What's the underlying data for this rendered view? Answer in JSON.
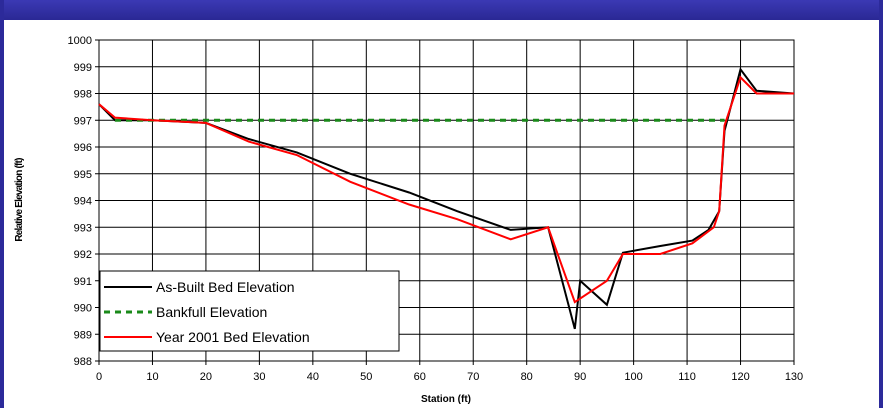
{
  "chart_data": {
    "type": "line",
    "title": "",
    "xlabel": "Station (ft)",
    "ylabel": "Relative Elevation (ft)",
    "xlim": [
      0,
      130
    ],
    "ylim": [
      988,
      1000
    ],
    "x_ticks": [
      0,
      10,
      20,
      30,
      40,
      50,
      60,
      70,
      80,
      90,
      100,
      110,
      120,
      130
    ],
    "y_ticks": [
      988,
      989,
      990,
      991,
      992,
      993,
      994,
      995,
      996,
      997,
      998,
      999,
      1000
    ],
    "grid": true,
    "legend_position": "bottom-left",
    "series": [
      {
        "name": "As-Built Bed Elevation",
        "color": "#000000",
        "style": "solid",
        "x": [
          0,
          3,
          10,
          20,
          28,
          37,
          47,
          58,
          67,
          77,
          84,
          89,
          90,
          95,
          98,
          105,
          111,
          114,
          116,
          117,
          120,
          123,
          130
        ],
        "y": [
          997.6,
          997.0,
          997.0,
          996.9,
          996.3,
          995.8,
          995.0,
          994.3,
          993.6,
          992.9,
          993.0,
          989.2,
          991.0,
          990.1,
          992.05,
          992.3,
          992.5,
          992.9,
          993.6,
          996.6,
          998.9,
          998.1,
          998.0
        ]
      },
      {
        "name": "Bankfull Elevation",
        "color": "#1a8a1a",
        "style": "dashed",
        "x": [
          3,
          117
        ],
        "y": [
          997.0,
          997.0
        ]
      },
      {
        "name": "Year 2001 Bed Elevation",
        "color": "#ff0000",
        "style": "solid",
        "x": [
          0,
          3,
          10,
          20,
          28,
          37,
          47,
          58,
          67,
          77,
          84,
          89,
          95,
          98,
          105,
          111,
          115,
          116,
          117,
          120,
          123,
          130
        ],
        "y": [
          997.6,
          997.1,
          997.0,
          996.9,
          996.2,
          995.7,
          994.7,
          993.85,
          993.3,
          992.55,
          993.0,
          990.2,
          991.0,
          992.0,
          992.0,
          992.4,
          993.0,
          993.6,
          996.8,
          998.6,
          998.0,
          998.0
        ]
      }
    ]
  }
}
